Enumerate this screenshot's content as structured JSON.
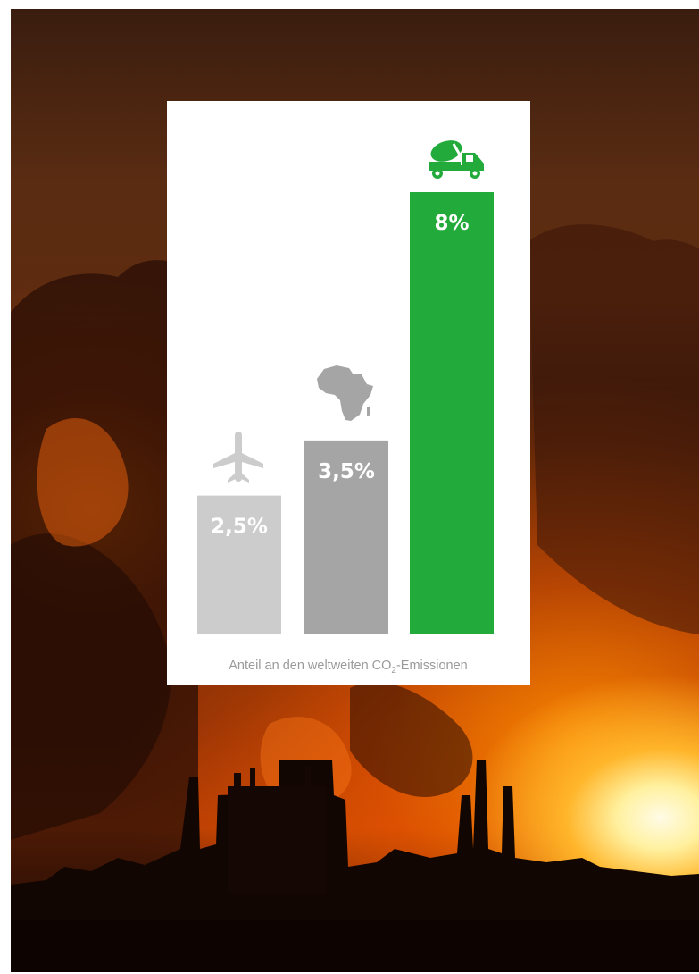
{
  "chart_data": {
    "type": "bar",
    "categories": [
      "Luftfahrt",
      "Afrika",
      "Zement"
    ],
    "values": [
      2.5,
      3.5,
      8
    ],
    "value_labels": [
      "2,5%",
      "3,5%",
      "8%"
    ],
    "icons": [
      "airplane-icon",
      "africa-icon",
      "cement-mixer-truck-icon"
    ],
    "colors": [
      "#cccccc",
      "#a5a5a5",
      "#22aa3a"
    ],
    "caption_prefix": "Anteil an den weltweiten CO",
    "caption_subscript": "2",
    "caption_suffix": "-Emissionen",
    "ylim": [
      0,
      8
    ],
    "grid": false,
    "legend": "none"
  }
}
